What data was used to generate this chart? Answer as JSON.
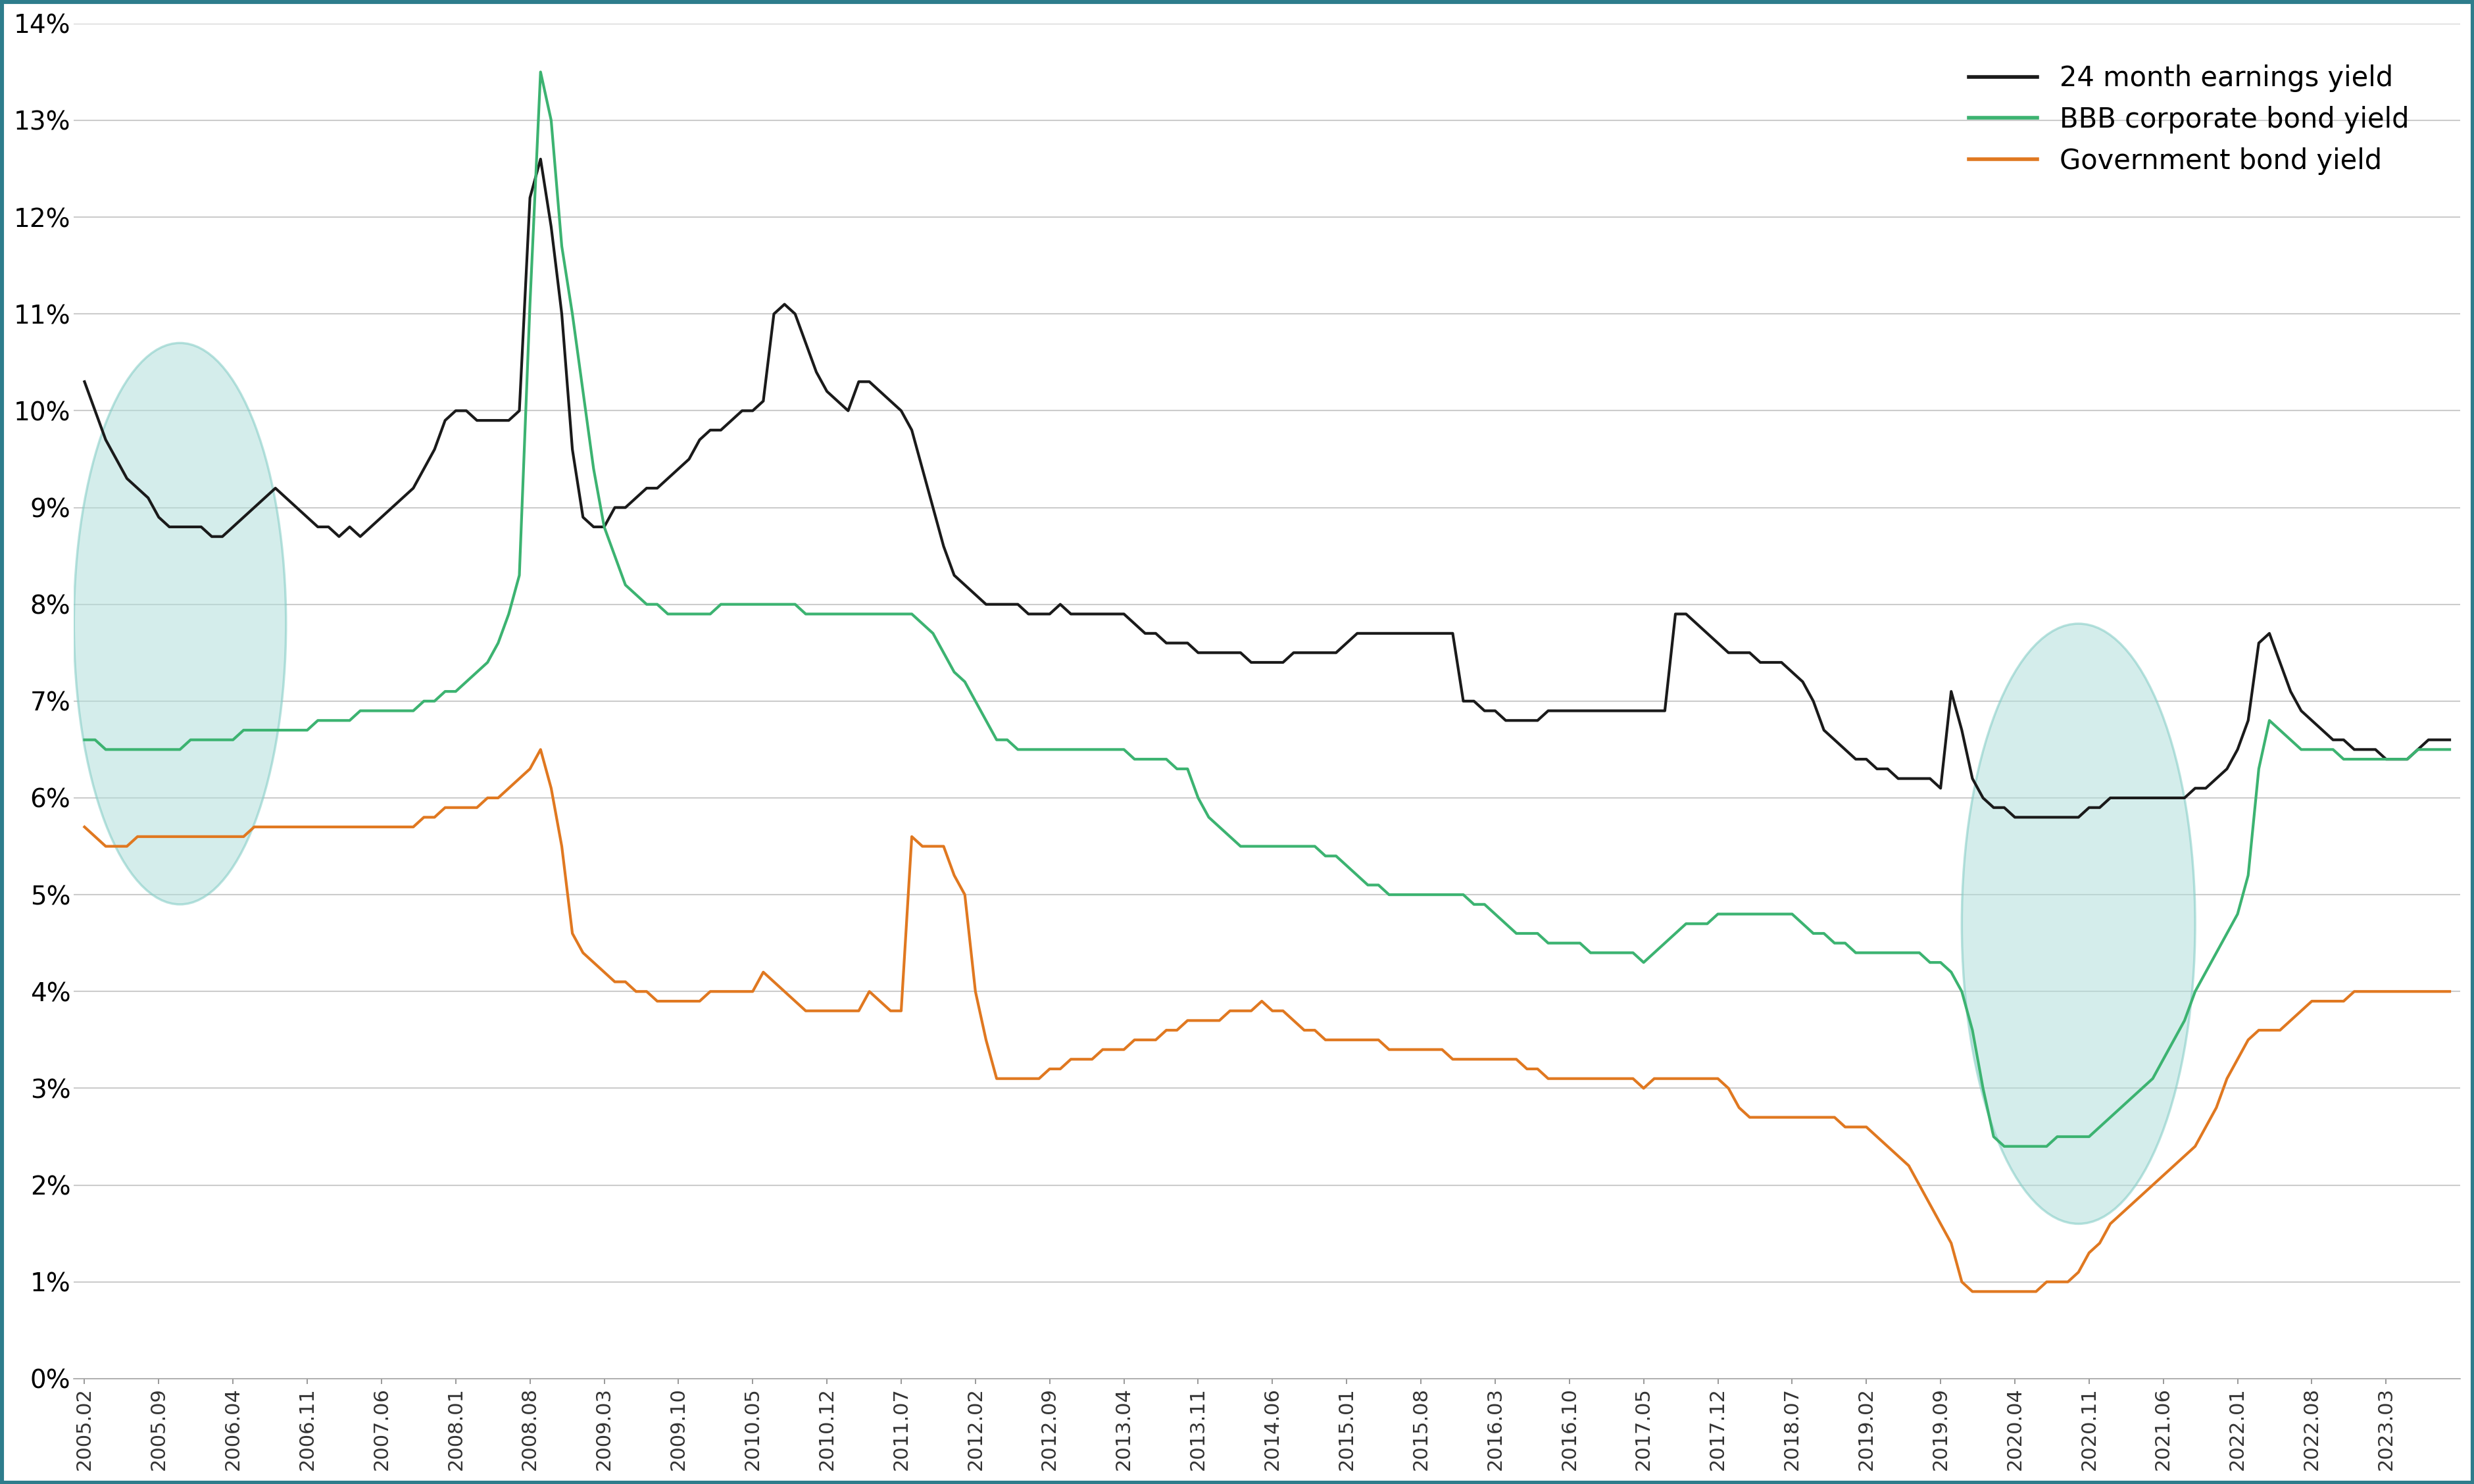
{
  "background_color": "#ffffff",
  "border_color": "#2e7d8c",
  "grid_color": "#cccccc",
  "legend_labels": [
    "24 month earnings yield",
    "BBB corporate bond yield",
    "Government bond yield"
  ],
  "line_colors": [
    "#1a1a1a",
    "#3cb371",
    "#e07820"
  ],
  "ylim": [
    0,
    0.14
  ],
  "yticks": [
    0.0,
    0.01,
    0.02,
    0.03,
    0.04,
    0.05,
    0.06,
    0.07,
    0.08,
    0.09,
    0.1,
    0.11,
    0.12,
    0.13,
    0.14
  ],
  "ytick_labels": [
    "0%",
    "1%",
    "2%",
    "3%",
    "4%",
    "5%",
    "6%",
    "7%",
    "8%",
    "9%",
    "10%",
    "11%",
    "12%",
    "13%",
    "14%"
  ],
  "xtick_labels": [
    "2005.02",
    "2005.09",
    "2006.04",
    "2006.11",
    "2007.06",
    "2008.01",
    "2008.08",
    "2009.03",
    "2009.10",
    "2010.05",
    "2010.12",
    "2011.07",
    "2012.02",
    "2012.09",
    "2013.04",
    "2013.11",
    "2014.06",
    "2015.01",
    "2015.08",
    "2016.03",
    "2016.10",
    "2017.05",
    "2017.12",
    "2018.07",
    "2019.02",
    "2019.09",
    "2020.04",
    "2020.11",
    "2021.06",
    "2022.01",
    "2022.08",
    "2023.03"
  ],
  "earnings_yield": [
    0.103,
    0.1,
    0.097,
    0.095,
    0.093,
    0.092,
    0.091,
    0.089,
    0.088,
    0.088,
    0.088,
    0.088,
    0.087,
    0.087,
    0.088,
    0.089,
    0.09,
    0.091,
    0.092,
    0.091,
    0.09,
    0.089,
    0.088,
    0.088,
    0.087,
    0.088,
    0.087,
    0.088,
    0.089,
    0.09,
    0.091,
    0.092,
    0.094,
    0.096,
    0.099,
    0.1,
    0.1,
    0.099,
    0.099,
    0.099,
    0.099,
    0.1,
    0.122,
    0.126,
    0.119,
    0.11,
    0.096,
    0.089,
    0.088,
    0.088,
    0.09,
    0.09,
    0.091,
    0.092,
    0.092,
    0.093,
    0.094,
    0.095,
    0.097,
    0.098,
    0.098,
    0.099,
    0.1,
    0.1,
    0.101,
    0.11,
    0.111,
    0.11,
    0.107,
    0.104,
    0.102,
    0.101,
    0.1,
    0.103,
    0.103,
    0.102,
    0.101,
    0.1,
    0.098,
    0.094,
    0.09,
    0.086,
    0.083,
    0.082,
    0.081,
    0.08,
    0.08,
    0.08,
    0.08,
    0.079,
    0.079,
    0.079,
    0.08,
    0.079,
    0.079,
    0.079,
    0.079,
    0.079,
    0.079,
    0.078,
    0.077,
    0.077,
    0.076,
    0.076,
    0.076,
    0.075,
    0.075,
    0.075,
    0.075,
    0.075,
    0.074,
    0.074,
    0.074,
    0.074,
    0.075,
    0.075,
    0.075,
    0.075,
    0.075,
    0.076,
    0.077,
    0.077,
    0.077,
    0.077,
    0.077,
    0.077,
    0.077,
    0.077,
    0.077,
    0.077,
    0.07,
    0.07,
    0.069,
    0.069,
    0.068,
    0.068,
    0.068,
    0.068,
    0.069,
    0.069,
    0.069,
    0.069,
    0.069,
    0.069,
    0.069,
    0.069,
    0.069,
    0.069,
    0.069,
    0.069,
    0.079,
    0.079,
    0.078,
    0.077,
    0.076,
    0.075,
    0.075,
    0.075,
    0.074,
    0.074,
    0.074,
    0.073,
    0.072,
    0.07,
    0.067,
    0.066,
    0.065,
    0.064,
    0.064,
    0.063,
    0.063,
    0.062,
    0.062,
    0.062,
    0.062,
    0.061,
    0.071,
    0.067,
    0.062,
    0.06,
    0.059,
    0.059,
    0.058,
    0.058,
    0.058,
    0.058,
    0.058,
    0.058,
    0.058,
    0.059,
    0.059,
    0.06,
    0.06,
    0.06,
    0.06,
    0.06,
    0.06,
    0.06,
    0.06,
    0.061,
    0.061,
    0.062,
    0.063,
    0.065,
    0.068,
    0.076,
    0.077,
    0.074,
    0.071,
    0.069,
    0.068,
    0.067,
    0.066,
    0.066,
    0.065,
    0.065,
    0.065,
    0.064,
    0.064,
    0.064,
    0.065,
    0.066,
    0.066,
    0.066
  ],
  "corporate_yield": [
    0.066,
    0.066,
    0.065,
    0.065,
    0.065,
    0.065,
    0.065,
    0.065,
    0.065,
    0.065,
    0.066,
    0.066,
    0.066,
    0.066,
    0.066,
    0.067,
    0.067,
    0.067,
    0.067,
    0.067,
    0.067,
    0.067,
    0.068,
    0.068,
    0.068,
    0.068,
    0.069,
    0.069,
    0.069,
    0.069,
    0.069,
    0.069,
    0.07,
    0.07,
    0.071,
    0.071,
    0.072,
    0.073,
    0.074,
    0.076,
    0.079,
    0.083,
    0.111,
    0.135,
    0.13,
    0.117,
    0.11,
    0.102,
    0.094,
    0.088,
    0.085,
    0.082,
    0.081,
    0.08,
    0.08,
    0.079,
    0.079,
    0.079,
    0.079,
    0.079,
    0.08,
    0.08,
    0.08,
    0.08,
    0.08,
    0.08,
    0.08,
    0.08,
    0.079,
    0.079,
    0.079,
    0.079,
    0.079,
    0.079,
    0.079,
    0.079,
    0.079,
    0.079,
    0.079,
    0.078,
    0.077,
    0.075,
    0.073,
    0.072,
    0.07,
    0.068,
    0.066,
    0.066,
    0.065,
    0.065,
    0.065,
    0.065,
    0.065,
    0.065,
    0.065,
    0.065,
    0.065,
    0.065,
    0.065,
    0.064,
    0.064,
    0.064,
    0.064,
    0.063,
    0.063,
    0.06,
    0.058,
    0.057,
    0.056,
    0.055,
    0.055,
    0.055,
    0.055,
    0.055,
    0.055,
    0.055,
    0.055,
    0.054,
    0.054,
    0.053,
    0.052,
    0.051,
    0.051,
    0.05,
    0.05,
    0.05,
    0.05,
    0.05,
    0.05,
    0.05,
    0.05,
    0.049,
    0.049,
    0.048,
    0.047,
    0.046,
    0.046,
    0.046,
    0.045,
    0.045,
    0.045,
    0.045,
    0.044,
    0.044,
    0.044,
    0.044,
    0.044,
    0.043,
    0.044,
    0.045,
    0.046,
    0.047,
    0.047,
    0.047,
    0.048,
    0.048,
    0.048,
    0.048,
    0.048,
    0.048,
    0.048,
    0.048,
    0.047,
    0.046,
    0.046,
    0.045,
    0.045,
    0.044,
    0.044,
    0.044,
    0.044,
    0.044,
    0.044,
    0.044,
    0.043,
    0.043,
    0.042,
    0.04,
    0.036,
    0.03,
    0.025,
    0.024,
    0.024,
    0.024,
    0.024,
    0.024,
    0.025,
    0.025,
    0.025,
    0.025,
    0.026,
    0.027,
    0.028,
    0.029,
    0.03,
    0.031,
    0.033,
    0.035,
    0.037,
    0.04,
    0.042,
    0.044,
    0.046,
    0.048,
    0.052,
    0.063,
    0.068,
    0.067,
    0.066,
    0.065,
    0.065,
    0.065,
    0.065,
    0.064,
    0.064,
    0.064,
    0.064,
    0.064,
    0.064,
    0.064,
    0.065,
    0.065,
    0.065,
    0.065
  ],
  "government_yield": [
    0.057,
    0.056,
    0.055,
    0.055,
    0.055,
    0.056,
    0.056,
    0.056,
    0.056,
    0.056,
    0.056,
    0.056,
    0.056,
    0.056,
    0.056,
    0.056,
    0.057,
    0.057,
    0.057,
    0.057,
    0.057,
    0.057,
    0.057,
    0.057,
    0.057,
    0.057,
    0.057,
    0.057,
    0.057,
    0.057,
    0.057,
    0.057,
    0.058,
    0.058,
    0.059,
    0.059,
    0.059,
    0.059,
    0.06,
    0.06,
    0.061,
    0.062,
    0.063,
    0.065,
    0.061,
    0.055,
    0.046,
    0.044,
    0.043,
    0.042,
    0.041,
    0.041,
    0.04,
    0.04,
    0.039,
    0.039,
    0.039,
    0.039,
    0.039,
    0.04,
    0.04,
    0.04,
    0.04,
    0.04,
    0.042,
    0.041,
    0.04,
    0.039,
    0.038,
    0.038,
    0.038,
    0.038,
    0.038,
    0.038,
    0.04,
    0.039,
    0.038,
    0.038,
    0.056,
    0.055,
    0.055,
    0.055,
    0.052,
    0.05,
    0.04,
    0.035,
    0.031,
    0.031,
    0.031,
    0.031,
    0.031,
    0.032,
    0.032,
    0.033,
    0.033,
    0.033,
    0.034,
    0.034,
    0.034,
    0.035,
    0.035,
    0.035,
    0.036,
    0.036,
    0.037,
    0.037,
    0.037,
    0.037,
    0.038,
    0.038,
    0.038,
    0.039,
    0.038,
    0.038,
    0.037,
    0.036,
    0.036,
    0.035,
    0.035,
    0.035,
    0.035,
    0.035,
    0.035,
    0.034,
    0.034,
    0.034,
    0.034,
    0.034,
    0.034,
    0.033,
    0.033,
    0.033,
    0.033,
    0.033,
    0.033,
    0.033,
    0.032,
    0.032,
    0.031,
    0.031,
    0.031,
    0.031,
    0.031,
    0.031,
    0.031,
    0.031,
    0.031,
    0.03,
    0.031,
    0.031,
    0.031,
    0.031,
    0.031,
    0.031,
    0.031,
    0.03,
    0.028,
    0.027,
    0.027,
    0.027,
    0.027,
    0.027,
    0.027,
    0.027,
    0.027,
    0.027,
    0.026,
    0.026,
    0.026,
    0.025,
    0.024,
    0.023,
    0.022,
    0.02,
    0.018,
    0.016,
    0.014,
    0.01,
    0.009,
    0.009,
    0.009,
    0.009,
    0.009,
    0.009,
    0.009,
    0.01,
    0.01,
    0.01,
    0.011,
    0.013,
    0.014,
    0.016,
    0.017,
    0.018,
    0.019,
    0.02,
    0.021,
    0.022,
    0.023,
    0.024,
    0.026,
    0.028,
    0.031,
    0.033,
    0.035,
    0.036,
    0.036,
    0.036,
    0.037,
    0.038,
    0.039,
    0.039,
    0.039,
    0.039,
    0.04,
    0.04,
    0.04,
    0.04,
    0.04,
    0.04,
    0.04,
    0.04,
    0.04,
    0.04
  ],
  "circle_color": "#b2dfdb",
  "circle_edge_color": "#80cbc4",
  "circle_alpha": 0.55,
  "lw": 3.0
}
